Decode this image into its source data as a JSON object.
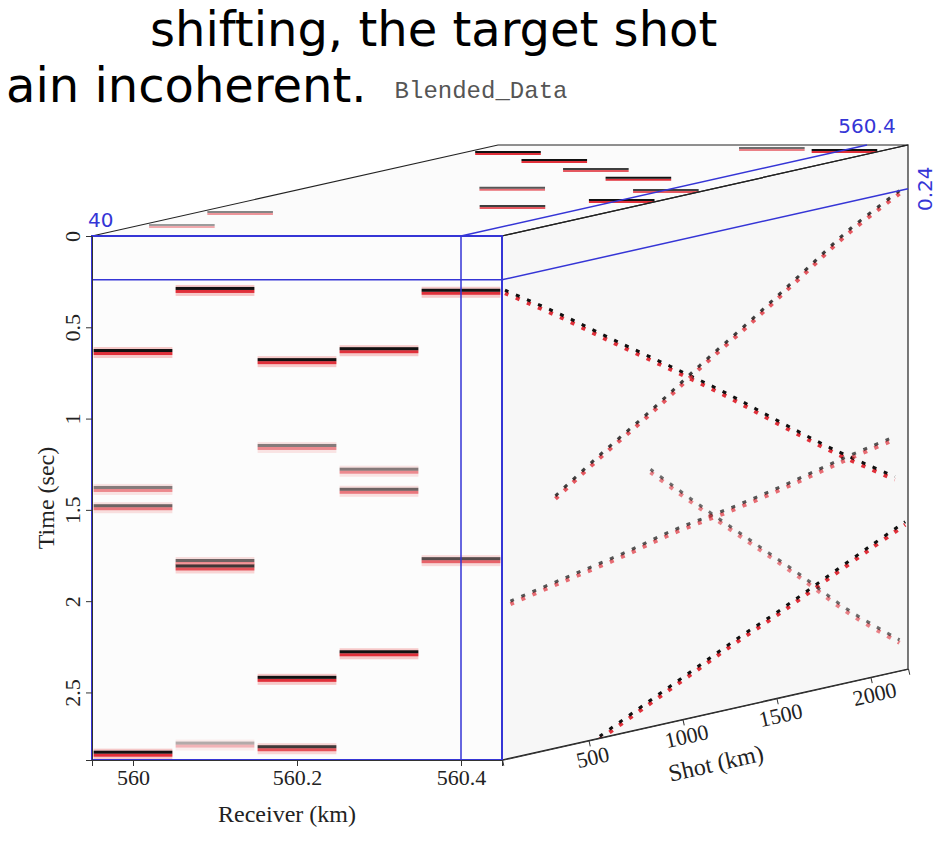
{
  "chart_data": {
    "type": "cube",
    "title": "Blended_Data",
    "annotations": [
      "shifting, the target shot",
      "ain incoherent."
    ],
    "xlabel": "Receiver (km)",
    "ylabel": "Time (sec)",
    "zlabel": "Shot (km)",
    "xlim": [
      559.95,
      560.45
    ],
    "xticks": [
      560,
      560.2,
      560.4
    ],
    "ylim": [
      0,
      2.87
    ],
    "yticks": [
      0,
      0.5,
      1,
      1.5,
      2,
      2.5
    ],
    "zlim": [
      40,
      2200
    ],
    "zticks": [
      500,
      1000,
      1500,
      2000
    ],
    "slices": {
      "shot": 40,
      "receiver": 560.4,
      "time": 0.24
    },
    "shot_gather": [
      {
        "receiver": 560,
        "times": [
          0.63,
          1.38,
          1.48,
          2.83
        ],
        "amplitudes": [
          1,
          0.5,
          0.6,
          1
        ]
      },
      {
        "receiver": 560.1,
        "times": [
          0.29,
          1.78,
          1.81,
          2.78
        ],
        "amplitudes": [
          1,
          0.6,
          0.8,
          0.3
        ]
      },
      {
        "receiver": 560.2,
        "times": [
          0.68,
          1.15,
          2.42,
          2.8
        ],
        "amplitudes": [
          1,
          0.5,
          1,
          0.8
        ]
      },
      {
        "receiver": 560.3,
        "times": [
          0.62,
          1.28,
          1.39,
          2.28
        ],
        "amplitudes": [
          1,
          0.5,
          0.6,
          1
        ]
      },
      {
        "receiver": 560.4,
        "times": [
          0.3,
          1.77
        ],
        "amplitudes": [
          1,
          0.7
        ]
      }
    ],
    "receiver_slice": [
      {
        "shots": [
          56,
          350,
          640,
          935,
          1225,
          1520,
          1810,
          2130
        ],
        "times": [
          0.3,
          0.5,
          0.71,
          0.92,
          1.13,
          1.36,
          1.58,
          1.8
        ],
        "amplitude": 1
      },
      {
        "shots": [
          2155,
          1890,
          1625,
          1360,
          1095,
          830,
          560,
          295
        ],
        "times": [
          0.24,
          0.39,
          0.58,
          0.77,
          0.95,
          1.14,
          1.32,
          1.51
        ],
        "amplitude": 0.8
      },
      {
        "shots": [
          85,
          375,
          670,
          960,
          1255,
          1545,
          1840,
          2130
        ],
        "times": [
          2.01,
          1.95,
          1.89,
          1.82,
          1.77,
          1.71,
          1.64,
          1.58
        ],
        "amplitude": 0.7
      },
      {
        "shots": [
          560,
          800,
          1040,
          1280,
          1520,
          1760,
          2000,
          2185
        ],
        "times": [
          2.86,
          2.74,
          2.62,
          2.5,
          2.39,
          2.27,
          2.15,
          2.06
        ],
        "amplitude": 1
      },
      {
        "shots": [
          830,
          1095,
          1360,
          1625,
          1890,
          2155
        ],
        "times": [
          1.46,
          1.72,
          1.97,
          2.22,
          2.48,
          2.7
        ],
        "amplitude": 0.6
      }
    ],
    "time_slice": {
      "shots": [
        2035,
        1845,
        1630,
        1420,
        1185,
        895,
        750,
        610,
        300,
        2080,
        2130,
        1130
      ],
      "receivers": [
        560,
        560.1,
        560.2,
        560.3,
        560.2,
        560.4,
        560.3,
        560,
        560,
        560.4,
        560.3,
        560.4
      ],
      "amplitudes": [
        1,
        1,
        0.8,
        1,
        0.7,
        1,
        0.8,
        0.5,
        0.4,
        1,
        0.6,
        0.8
      ]
    }
  }
}
